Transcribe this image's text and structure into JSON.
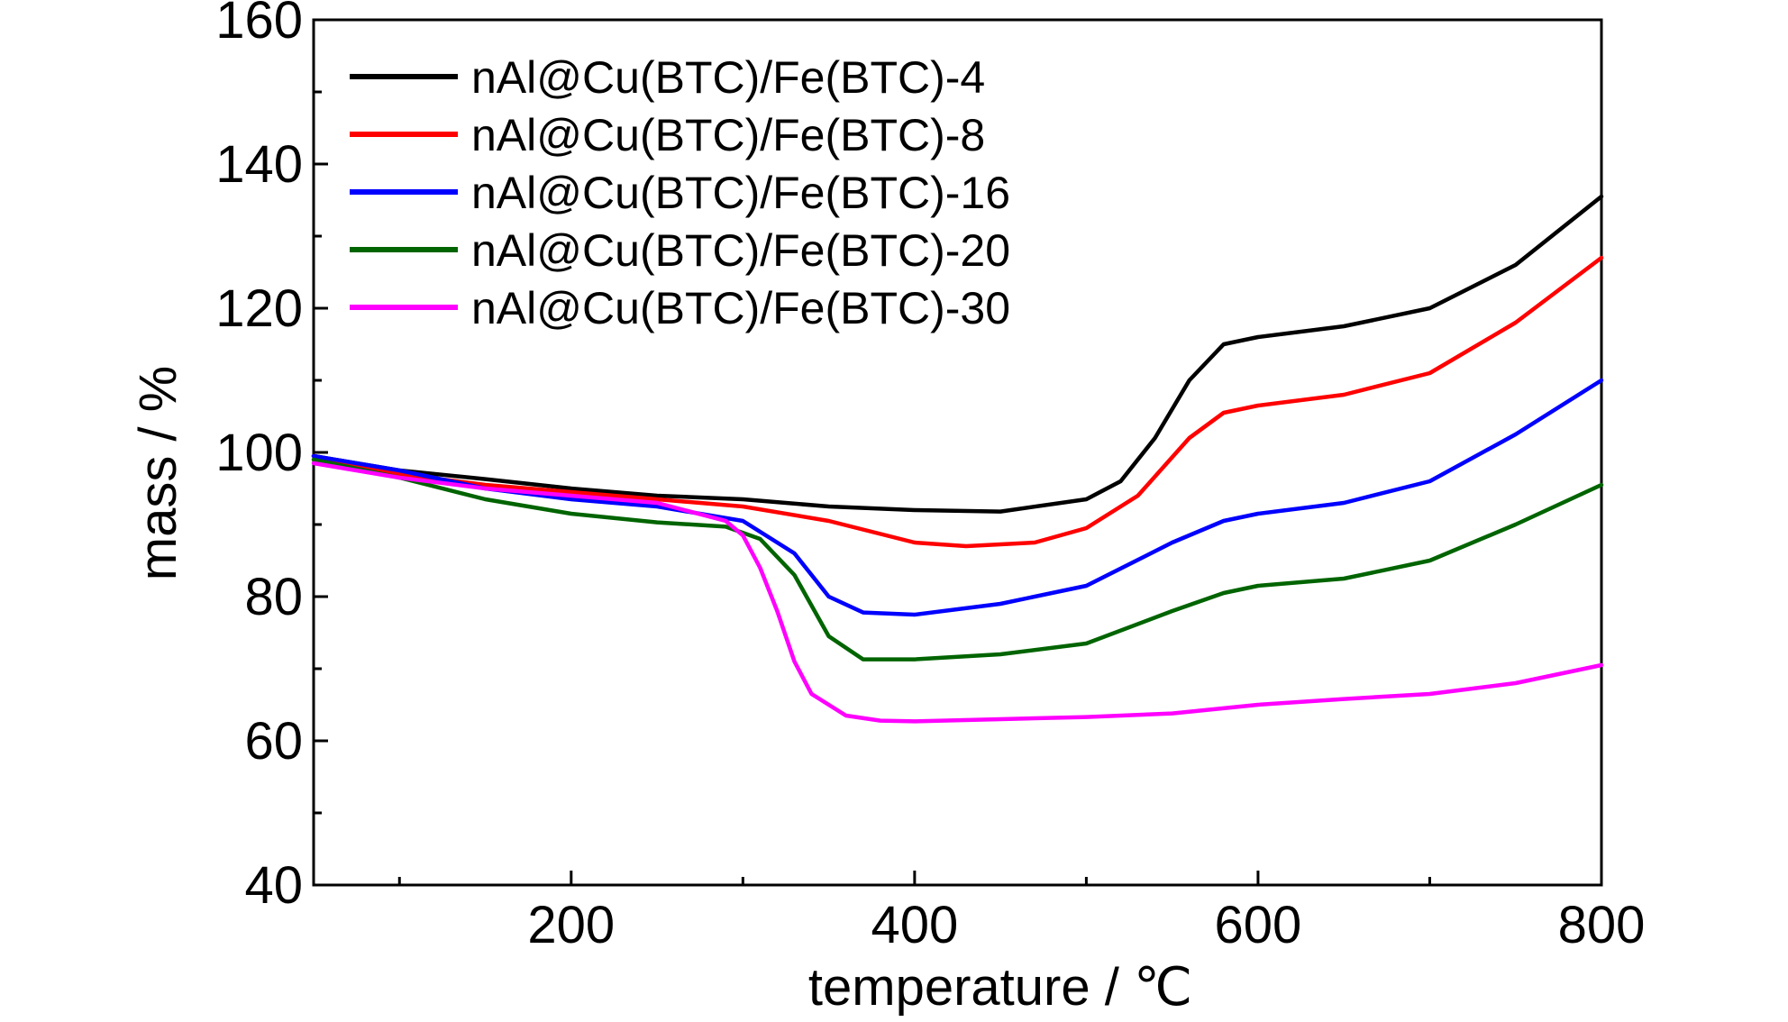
{
  "chart_data": {
    "type": "line",
    "title": "",
    "xlabel": "temperature / ℃",
    "ylabel": "mass / %",
    "xlim": [
      50,
      800
    ],
    "ylim": [
      40,
      160
    ],
    "x_ticks": [
      200,
      400,
      600,
      800
    ],
    "x_minor_ticks": [
      100,
      300,
      500,
      700
    ],
    "y_ticks": [
      40,
      60,
      80,
      100,
      120,
      140,
      160
    ],
    "y_minor_ticks": [
      50,
      70,
      90,
      110,
      130,
      150
    ],
    "grid": false,
    "legend_position": "top-left",
    "series": [
      {
        "name": "nAl@Cu(BTC)/Fe(BTC)-4",
        "color": "#000000",
        "x": [
          50,
          100,
          150,
          200,
          250,
          300,
          350,
          400,
          450,
          500,
          520,
          540,
          560,
          580,
          600,
          650,
          700,
          750,
          800
        ],
        "y": [
          99.5,
          97.5,
          96.3,
          95,
          94,
          93.5,
          92.5,
          92,
          91.8,
          93.5,
          96,
          102,
          110,
          115,
          116,
          117.5,
          120,
          126,
          135.5
        ]
      },
      {
        "name": "nAl@Cu(BTC)/Fe(BTC)-8",
        "color": "#ff0000",
        "x": [
          50,
          100,
          150,
          200,
          250,
          300,
          350,
          400,
          430,
          470,
          500,
          530,
          560,
          580,
          600,
          650,
          700,
          750,
          800
        ],
        "y": [
          99.5,
          97,
          95.5,
          94.5,
          93.5,
          92.5,
          90.5,
          87.5,
          87,
          87.5,
          89.5,
          94,
          102,
          105.5,
          106.5,
          108,
          111,
          118,
          127
        ]
      },
      {
        "name": "nAl@Cu(BTC)/Fe(BTC)-16",
        "color": "#0000ff",
        "x": [
          50,
          100,
          150,
          200,
          250,
          300,
          330,
          350,
          370,
          400,
          450,
          500,
          550,
          580,
          600,
          650,
          700,
          750,
          800
        ],
        "y": [
          99.5,
          97.5,
          95,
          93.5,
          92.5,
          90.5,
          86,
          80,
          77.8,
          77.5,
          79,
          81.5,
          87.5,
          90.5,
          91.5,
          93,
          96,
          102.5,
          110
        ]
      },
      {
        "name": "nAl@Cu(BTC)/Fe(BTC)-20",
        "color": "#006400",
        "x": [
          50,
          100,
          150,
          200,
          250,
          290,
          310,
          330,
          350,
          370,
          400,
          450,
          500,
          550,
          580,
          600,
          650,
          700,
          750,
          800
        ],
        "y": [
          99,
          96.5,
          93.5,
          91.5,
          90.3,
          89.7,
          88,
          83,
          74.5,
          71.3,
          71.3,
          72,
          73.5,
          78,
          80.5,
          81.5,
          82.5,
          85,
          90,
          95.5
        ]
      },
      {
        "name": "nAl@Cu(BTC)/Fe(BTC)-30",
        "color": "#ff00ff",
        "x": [
          50,
          100,
          150,
          200,
          250,
          290,
          300,
          310,
          320,
          330,
          340,
          360,
          380,
          400,
          450,
          500,
          550,
          600,
          650,
          700,
          750,
          800
        ],
        "y": [
          98.5,
          96.5,
          95,
          94,
          93,
          90.5,
          88.5,
          84,
          78,
          71,
          66.5,
          63.5,
          62.8,
          62.7,
          63,
          63.3,
          63.8,
          65,
          65.8,
          66.5,
          68,
          70.5
        ]
      }
    ]
  }
}
